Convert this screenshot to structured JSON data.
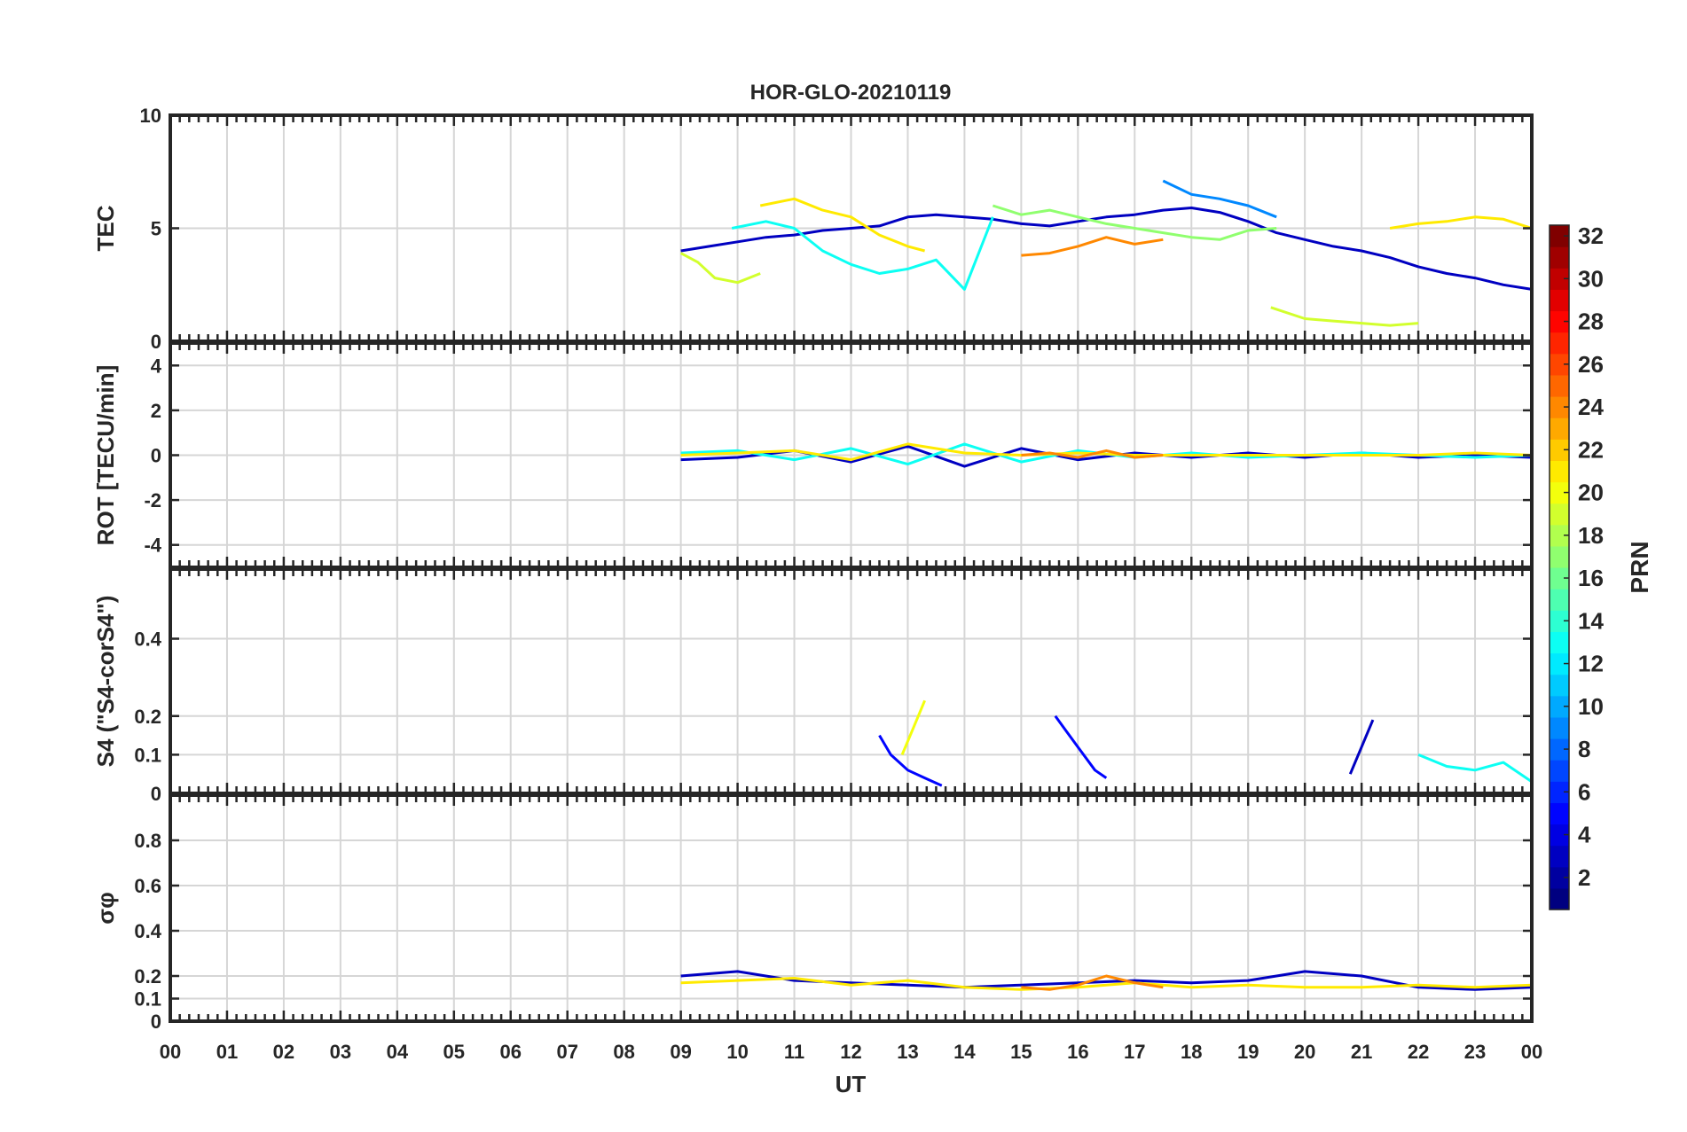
{
  "figure": {
    "title": "HOR-GLO-20210119"
  },
  "chart_data": [
    {
      "type": "line",
      "panel": "tec",
      "ylabel": "TEC",
      "ylim": [
        0,
        10
      ],
      "yticks": [
        0,
        5,
        10
      ],
      "xlim": [
        0,
        24
      ],
      "series": [
        {
          "prn": 3,
          "x": [
            9.0,
            9.5,
            10.0,
            10.5,
            11.0,
            11.5,
            12.0,
            12.5,
            13.0,
            13.5,
            14.0,
            14.5,
            15.0,
            15.5,
            16.0,
            16.5,
            17.0,
            17.5,
            18.0,
            18.5,
            19.0,
            19.5,
            20.0,
            20.5,
            21.0,
            21.5,
            22.0,
            22.5,
            23.0,
            23.5,
            24.0
          ],
          "y": [
            4.0,
            4.2,
            4.4,
            4.6,
            4.7,
            4.9,
            5.0,
            5.1,
            5.5,
            5.6,
            5.5,
            5.4,
            5.2,
            5.1,
            5.3,
            5.5,
            5.6,
            5.8,
            5.9,
            5.7,
            5.3,
            4.8,
            4.5,
            4.2,
            4.0,
            3.7,
            3.3,
            3.0,
            2.8,
            2.5,
            2.3
          ]
        },
        {
          "prn": 9,
          "x": [
            17.5,
            18.0,
            18.5,
            19.0,
            19.5
          ],
          "y": [
            7.1,
            6.5,
            6.3,
            6.0,
            5.5
          ]
        },
        {
          "prn": 13,
          "x": [
            9.9,
            10.5,
            11.0,
            11.5,
            12.0,
            12.5,
            13.0,
            13.5,
            14.0,
            14.5
          ],
          "y": [
            5.0,
            5.3,
            5.0,
            4.0,
            3.4,
            3.0,
            3.2,
            3.6,
            2.3,
            5.5
          ]
        },
        {
          "prn": 17,
          "x": [
            14.5,
            15.0,
            15.5,
            16.0,
            16.5,
            17.0,
            17.5,
            18.0,
            18.5,
            19.0,
            19.5
          ],
          "y": [
            6.0,
            5.6,
            5.8,
            5.5,
            5.2,
            5.0,
            4.8,
            4.6,
            4.5,
            4.9,
            5.0
          ]
        },
        {
          "prn": 19,
          "x": [
            9.0,
            9.3,
            9.6,
            10.0,
            10.4
          ],
          "y": [
            3.9,
            3.5,
            2.8,
            2.6,
            3.0
          ]
        },
        {
          "prn": 19,
          "x": [
            19.4,
            20.0,
            20.5,
            21.0,
            21.5,
            22.0
          ],
          "y": [
            1.5,
            1.0,
            0.9,
            0.8,
            0.7,
            0.8
          ]
        },
        {
          "prn": 21,
          "x": [
            10.4,
            11.0,
            11.5,
            12.0,
            12.5,
            13.0,
            13.3
          ],
          "y": [
            6.0,
            6.3,
            5.8,
            5.5,
            4.7,
            4.2,
            4.0
          ]
        },
        {
          "prn": 21,
          "x": [
            21.5,
            22.0,
            22.5,
            23.0,
            23.5,
            24.0
          ],
          "y": [
            5.0,
            5.2,
            5.3,
            5.5,
            5.4,
            5.0
          ]
        },
        {
          "prn": 24,
          "x": [
            15.0,
            15.5,
            16.0,
            16.5,
            17.0,
            17.5
          ],
          "y": [
            3.8,
            3.9,
            4.2,
            4.6,
            4.3,
            4.5
          ]
        }
      ]
    },
    {
      "type": "line",
      "panel": "rot",
      "ylabel": "ROT [TECU/min]",
      "ylim": [
        -5,
        5
      ],
      "yticks": [
        -4,
        -2,
        0,
        2,
        4
      ],
      "xlim": [
        0,
        24
      ],
      "series": [
        {
          "prn": 3,
          "x": [
            9.0,
            10.0,
            11.0,
            12.0,
            13.0,
            14.0,
            15.0,
            16.0,
            17.0,
            18.0,
            19.0,
            20.0,
            21.0,
            22.0,
            23.0,
            24.0
          ],
          "y": [
            -0.2,
            -0.1,
            0.2,
            -0.3,
            0.4,
            -0.5,
            0.3,
            -0.2,
            0.1,
            -0.1,
            0.1,
            -0.1,
            0.1,
            -0.1,
            0.0,
            -0.1
          ]
        },
        {
          "prn": 13,
          "x": [
            9.0,
            10.0,
            11.0,
            12.0,
            13.0,
            14.0,
            15.0,
            16.0,
            17.0,
            18.0,
            19.0,
            20.0,
            21.0,
            22.0,
            23.0,
            24.0
          ],
          "y": [
            0.1,
            0.2,
            -0.2,
            0.3,
            -0.4,
            0.5,
            -0.3,
            0.2,
            -0.1,
            0.1,
            -0.1,
            0.0,
            0.1,
            0.0,
            -0.1,
            0.0
          ]
        },
        {
          "prn": 21,
          "x": [
            9.0,
            10.0,
            11.0,
            12.0,
            13.0,
            14.0,
            15.0,
            16.0,
            17.0,
            18.0,
            19.0,
            20.0,
            21.0,
            22.0,
            23.0,
            24.0
          ],
          "y": [
            0.0,
            0.1,
            0.2,
            -0.2,
            0.5,
            0.1,
            0.0,
            0.1,
            0.0,
            0.0,
            0.0,
            0.0,
            0.0,
            0.0,
            0.1,
            0.0
          ]
        },
        {
          "prn": 24,
          "x": [
            15.0,
            15.5,
            16.0,
            16.5,
            17.0,
            17.5
          ],
          "y": [
            0.0,
            0.1,
            -0.1,
            0.2,
            -0.1,
            0.0
          ]
        }
      ]
    },
    {
      "type": "line",
      "panel": "s4",
      "ylabel": "S4 (\"S4-corS4\")",
      "ylim": [
        0,
        0.58
      ],
      "yticks": [
        0,
        0.1,
        0.2,
        0.4
      ],
      "xlim": [
        0,
        24
      ],
      "series": [
        {
          "prn": 5,
          "x": [
            12.5,
            12.7,
            13.0,
            13.3,
            13.6
          ],
          "y": [
            0.15,
            0.1,
            0.06,
            0.04,
            0.02
          ]
        },
        {
          "prn": 5,
          "x": [
            15.6,
            15.8,
            16.0,
            16.3,
            16.5
          ],
          "y": [
            0.2,
            0.16,
            0.12,
            0.06,
            0.04
          ]
        },
        {
          "prn": 3,
          "x": [
            20.8,
            21.0,
            21.2
          ],
          "y": [
            0.05,
            0.12,
            0.19
          ]
        },
        {
          "prn": 20,
          "x": [
            12.9,
            13.1,
            13.3
          ],
          "y": [
            0.1,
            0.17,
            0.24
          ]
        },
        {
          "prn": 13,
          "x": [
            22.0,
            22.5,
            23.0,
            23.5,
            24.0
          ],
          "y": [
            0.1,
            0.07,
            0.06,
            0.08,
            0.03
          ]
        }
      ]
    },
    {
      "type": "line",
      "panel": "sigma_phi",
      "ylabel": "σφ",
      "ylim": [
        0,
        1
      ],
      "yticks": [
        0,
        0.1,
        0.2,
        0.4,
        0.6,
        0.8
      ],
      "xlim": [
        0,
        24
      ],
      "series": [
        {
          "prn": 3,
          "x": [
            9.0,
            10.0,
            11.0,
            12.0,
            13.0,
            14.0,
            15.0,
            16.0,
            17.0,
            18.0,
            19.0,
            20.0,
            21.0,
            22.0,
            23.0,
            24.0
          ],
          "y": [
            0.2,
            0.22,
            0.18,
            0.17,
            0.16,
            0.15,
            0.16,
            0.17,
            0.18,
            0.17,
            0.18,
            0.22,
            0.2,
            0.15,
            0.14,
            0.15
          ]
        },
        {
          "prn": 21,
          "x": [
            9.0,
            10.0,
            11.0,
            12.0,
            13.0,
            14.0,
            15.0,
            16.0,
            17.0,
            18.0,
            19.0,
            20.0,
            21.0,
            22.0,
            23.0,
            24.0
          ],
          "y": [
            0.17,
            0.18,
            0.19,
            0.16,
            0.18,
            0.15,
            0.14,
            0.15,
            0.17,
            0.15,
            0.16,
            0.15,
            0.15,
            0.16,
            0.15,
            0.16
          ]
        },
        {
          "prn": 24,
          "x": [
            15.0,
            15.5,
            16.0,
            16.5,
            17.0,
            17.5
          ],
          "y": [
            0.15,
            0.14,
            0.16,
            0.2,
            0.17,
            0.15
          ]
        }
      ]
    }
  ],
  "x_axis": {
    "label": "UT",
    "ticks": [
      "00",
      "01",
      "02",
      "03",
      "04",
      "05",
      "06",
      "07",
      "08",
      "09",
      "10",
      "11",
      "12",
      "13",
      "14",
      "15",
      "16",
      "17",
      "18",
      "19",
      "20",
      "21",
      "22",
      "23",
      "00"
    ]
  },
  "colorbar": {
    "label": "PRN",
    "min": 1,
    "max": 32,
    "ticks": [
      "2",
      "4",
      "6",
      "8",
      "10",
      "12",
      "14",
      "16",
      "18",
      "20",
      "22",
      "24",
      "26",
      "28",
      "30",
      "32"
    ]
  }
}
